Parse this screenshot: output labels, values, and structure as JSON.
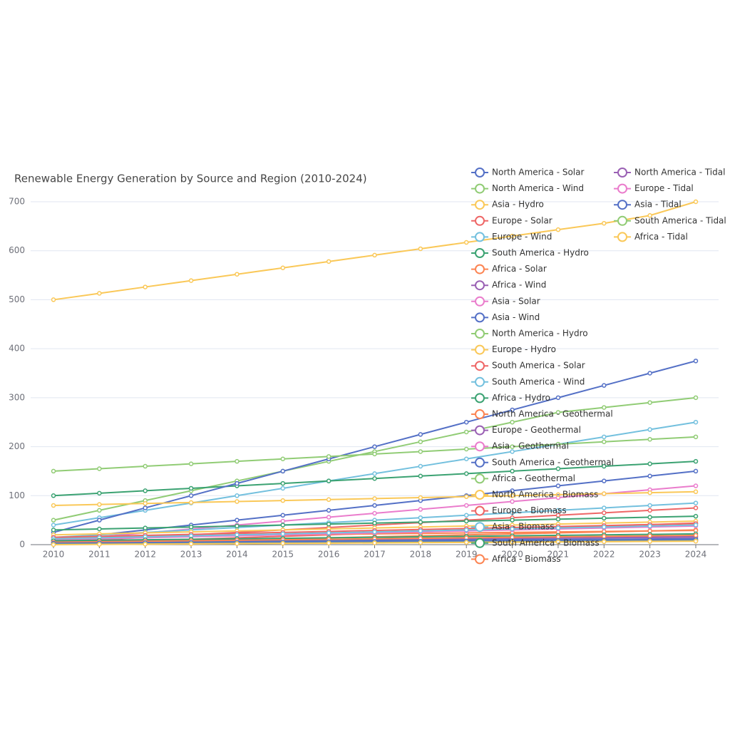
{
  "chart_data": {
    "type": "line",
    "title": "Renewable Energy Generation by Source and Region (2010-2024)",
    "categories": [
      "2010",
      "2011",
      "2012",
      "2013",
      "2014",
      "2015",
      "2016",
      "2017",
      "2018",
      "2019",
      "2020",
      "2021",
      "2022",
      "2023",
      "2024"
    ],
    "ylim": [
      0,
      700
    ],
    "yticks": [
      0,
      100,
      200,
      300,
      400,
      500,
      600,
      700
    ],
    "grid": true,
    "series": [
      {
        "name": "North America - Solar",
        "color": "#5470c6",
        "values": [
          10,
          20,
          30,
          40,
          50,
          60,
          70,
          80,
          90,
          100,
          110,
          120,
          130,
          140,
          150
        ]
      },
      {
        "name": "North America - Wind",
        "color": "#91cc75",
        "values": [
          50,
          70,
          90,
          110,
          130,
          150,
          170,
          190,
          210,
          230,
          250,
          270,
          280,
          290,
          300
        ]
      },
      {
        "name": "Asia - Hydro",
        "color": "#fac858",
        "values": [
          500,
          513,
          526,
          539,
          552,
          565,
          578,
          591,
          604,
          617,
          630,
          643,
          656,
          672,
          700
        ]
      },
      {
        "name": "Europe - Solar",
        "color": "#ee6666",
        "values": [
          5,
          10,
          15,
          20,
          25,
          30,
          35,
          40,
          45,
          50,
          55,
          60,
          65,
          70,
          75
        ]
      },
      {
        "name": "Europe - Wind",
        "color": "#73c0de",
        "values": [
          40,
          55,
          70,
          85,
          100,
          115,
          130,
          145,
          160,
          175,
          190,
          205,
          220,
          235,
          250
        ]
      },
      {
        "name": "South America - Hydro",
        "color": "#3ba272",
        "values": [
          100,
          105,
          110,
          115,
          120,
          125,
          130,
          135,
          140,
          145,
          150,
          155,
          160,
          165,
          170
        ]
      },
      {
        "name": "Africa - Solar",
        "color": "#fc8452",
        "values": [
          2,
          4,
          6,
          8,
          10,
          12,
          14,
          16,
          18,
          20,
          22,
          24,
          26,
          28,
          30
        ]
      },
      {
        "name": "Africa - Wind",
        "color": "#9a60b4",
        "values": [
          3,
          4,
          5,
          6,
          7,
          8,
          9,
          10,
          11,
          12,
          13,
          14,
          15,
          16,
          17
        ]
      },
      {
        "name": "Asia - Solar",
        "color": "#ea7ccc",
        "values": [
          8,
          16,
          24,
          32,
          40,
          48,
          56,
          64,
          72,
          80,
          88,
          96,
          104,
          112,
          120
        ]
      },
      {
        "name": "Asia - Wind",
        "color": "#5470c6",
        "values": [
          25,
          50,
          75,
          100,
          125,
          150,
          175,
          200,
          225,
          250,
          275,
          300,
          325,
          350,
          375
        ]
      },
      {
        "name": "North America - Hydro",
        "color": "#91cc75",
        "values": [
          150,
          155,
          160,
          165,
          170,
          175,
          180,
          185,
          190,
          195,
          200,
          205,
          210,
          215,
          220
        ]
      },
      {
        "name": "Europe - Hydro",
        "color": "#fac858",
        "values": [
          80,
          82,
          84,
          86,
          88,
          90,
          92,
          94,
          96,
          98,
          100,
          102,
          104,
          106,
          108
        ]
      },
      {
        "name": "South America - Solar",
        "color": "#ee6666",
        "values": [
          2,
          5,
          8,
          11,
          14,
          17,
          20,
          23,
          26,
          29,
          32,
          35,
          38,
          41,
          44
        ]
      },
      {
        "name": "South America - Wind",
        "color": "#73c0de",
        "values": [
          15,
          20,
          25,
          30,
          35,
          40,
          45,
          50,
          55,
          60,
          65,
          70,
          75,
          80,
          85
        ]
      },
      {
        "name": "Africa - Hydro",
        "color": "#3ba272",
        "values": [
          30,
          32,
          34,
          36,
          38,
          40,
          42,
          44,
          46,
          48,
          50,
          52,
          54,
          56,
          58
        ]
      },
      {
        "name": "North America - Geothermal",
        "color": "#fc8452",
        "values": [
          15,
          16,
          17,
          18,
          19,
          20,
          21,
          22,
          23,
          24,
          25,
          26,
          27,
          28,
          29
        ]
      },
      {
        "name": "Europe - Geothermal",
        "color": "#9a60b4",
        "values": [
          8,
          8.5,
          9,
          9.5,
          10,
          10.5,
          11,
          11.5,
          12,
          12.5,
          13,
          13.5,
          14,
          14.5,
          15
        ]
      },
      {
        "name": "Asia - Geothermal",
        "color": "#ea7ccc",
        "values": [
          10,
          12,
          14,
          16,
          18,
          20,
          22,
          24,
          26,
          28,
          30,
          32,
          34,
          36,
          38
        ]
      },
      {
        "name": "South America - Geothermal",
        "color": "#5470c6",
        "values": [
          5,
          5.5,
          6,
          6.5,
          7,
          7.5,
          8,
          8.5,
          9,
          9.5,
          10,
          10.5,
          11,
          11.5,
          12
        ]
      },
      {
        "name": "Africa - Geothermal",
        "color": "#91cc75",
        "values": [
          3,
          3.5,
          4,
          4.5,
          5,
          5.5,
          6,
          6.5,
          7,
          7.5,
          8,
          8.5,
          9,
          9.5,
          10
        ]
      },
      {
        "name": "North America - Biomass",
        "color": "#fac858",
        "values": [
          20,
          22,
          24,
          26,
          28,
          30,
          32,
          34,
          36,
          38,
          40,
          42,
          44,
          46,
          48
        ]
      },
      {
        "name": "Europe - Biomass",
        "color": "#ee6666",
        "values": [
          15,
          17,
          19,
          21,
          23,
          25,
          27,
          29,
          31,
          33,
          35,
          37,
          39,
          41,
          43
        ]
      },
      {
        "name": "Asia - Biomass",
        "color": "#73c0de",
        "values": [
          12,
          14,
          16,
          18,
          20,
          22,
          24,
          26,
          28,
          30,
          32,
          34,
          36,
          38,
          40
        ]
      },
      {
        "name": "South America - Biomass",
        "color": "#3ba272",
        "values": [
          8,
          9,
          10,
          11,
          12,
          13,
          14,
          15,
          16,
          17,
          18,
          19,
          20,
          21,
          22
        ]
      },
      {
        "name": "Africa - Biomass",
        "color": "#fc8452",
        "values": [
          5,
          6,
          7,
          8,
          9,
          10,
          11,
          12,
          13,
          14,
          15,
          16,
          17,
          18,
          19
        ]
      },
      {
        "name": "North America - Tidal",
        "color": "#9a60b4",
        "values": [
          1,
          1.5,
          2,
          2.5,
          3,
          3.5,
          4,
          4.5,
          5,
          5.5,
          6,
          6.5,
          7,
          7.5,
          8
        ]
      },
      {
        "name": "Europe - Tidal",
        "color": "#ea7ccc",
        "values": [
          2,
          2.5,
          3,
          3.5,
          4,
          4.5,
          5,
          5.5,
          6,
          6.5,
          7,
          7.5,
          8,
          8.5,
          9
        ]
      },
      {
        "name": "Asia - Tidal",
        "color": "#5470c6",
        "values": [
          3,
          3.5,
          4,
          4.5,
          5,
          5.5,
          6,
          6.5,
          7,
          7.5,
          8,
          8.5,
          9,
          9.5,
          10
        ]
      },
      {
        "name": "South America - Tidal",
        "color": "#91cc75",
        "values": [
          0.5,
          1,
          1.5,
          2,
          2.5,
          3,
          3.5,
          4,
          4.5,
          5,
          5.5,
          6,
          6.5,
          7,
          7.5
        ]
      },
      {
        "name": "Africa - Tidal",
        "color": "#fac858",
        "values": [
          0,
          0.5,
          1,
          1.5,
          2,
          2.5,
          3,
          3.5,
          4,
          4.5,
          5,
          5.5,
          6,
          6.5,
          7
        ]
      }
    ]
  }
}
